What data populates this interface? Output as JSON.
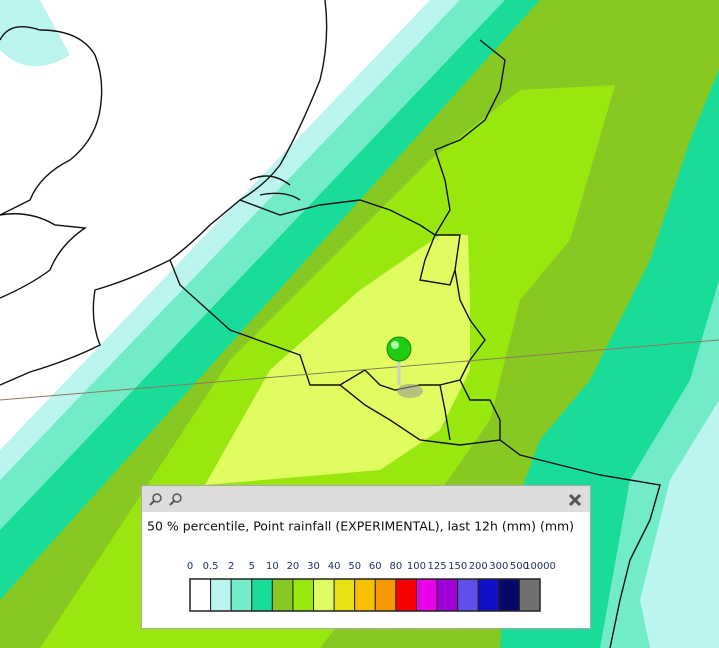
{
  "panel": {
    "title": "50 % percentile, Point rainfall (EXPERIMENTAL), last 12h (mm) (mm)",
    "legend": {
      "labels": [
        0,
        0.5,
        2,
        5,
        10,
        20,
        30,
        40,
        50,
        60,
        80,
        100,
        125,
        150,
        200,
        300,
        500,
        10000
      ],
      "colors": [
        "#ffffff",
        "#bcf4f0",
        "#72ecc8",
        "#18dc98",
        "#88c822",
        "#98e810",
        "#e0fc60",
        "#e8e010",
        "#f8c000",
        "#f89800",
        "#f80000",
        "#e800e8",
        "#a000d8",
        "#6050e8",
        "#1010c8",
        "#080868",
        "#707070"
      ]
    }
  }
}
